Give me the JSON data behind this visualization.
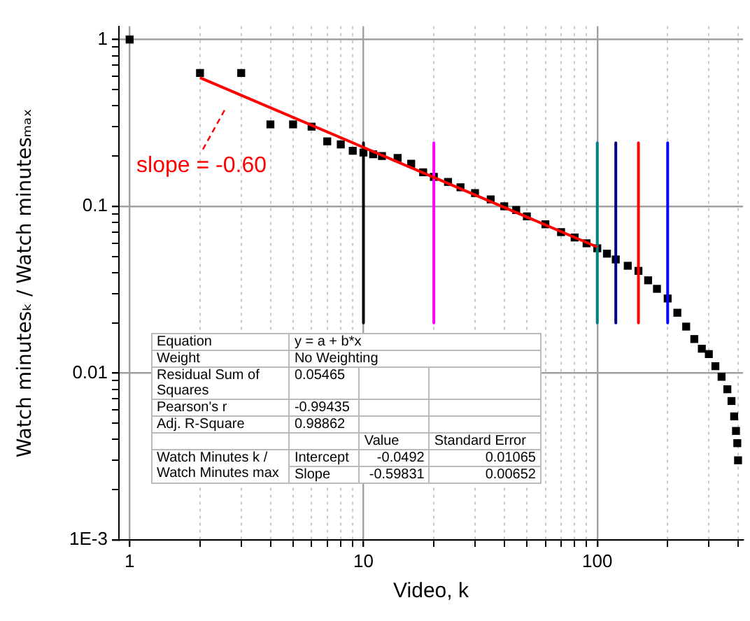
{
  "chart_data": {
    "type": "scatter",
    "xlabel": "Video, k",
    "ylabel": "Watch minutesₖ / Watch minutesₘₐₓ",
    "log": "xy",
    "grid": true,
    "legend": false,
    "marker": "square",
    "xlim": [
      0.9,
      420
    ],
    "ylim": [
      0.001,
      1.2
    ],
    "xticks": [
      1,
      {
        "value": 2,
        "label": null
      },
      {
        "value": 3,
        "label": null
      },
      {
        "value": 4,
        "label": null
      },
      {
        "value": 5,
        "label": null
      },
      {
        "value": 6,
        "label": null
      },
      {
        "value": 7,
        "label": null
      },
      {
        "value": 8,
        "label": null
      },
      {
        "value": 9,
        "label": null
      },
      10,
      {
        "value": 20,
        "label": null
      },
      {
        "value": 30,
        "label": null
      },
      {
        "value": 40,
        "label": null
      },
      {
        "value": 50,
        "label": null
      },
      {
        "value": 60,
        "label": null
      },
      {
        "value": 70,
        "label": null
      },
      {
        "value": 80,
        "label": null
      },
      {
        "value": 90,
        "label": null
      },
      100,
      {
        "value": 200,
        "label": null
      },
      {
        "value": 300,
        "label": null
      },
      {
        "value": 400,
        "label": null
      }
    ],
    "yticks": [
      {
        "value": 0.001,
        "label": "1E-3"
      },
      {
        "value": 0.002,
        "label": null
      },
      {
        "value": 0.003,
        "label": null
      },
      {
        "value": 0.004,
        "label": null
      },
      {
        "value": 0.005,
        "label": null
      },
      {
        "value": 0.006,
        "label": null
      },
      {
        "value": 0.007,
        "label": null
      },
      {
        "value": 0.008,
        "label": null
      },
      {
        "value": 0.009,
        "label": null
      },
      0.01,
      {
        "value": 0.02,
        "label": null
      },
      {
        "value": 0.03,
        "label": null
      },
      {
        "value": 0.04,
        "label": null
      },
      {
        "value": 0.05,
        "label": null
      },
      {
        "value": 0.06,
        "label": null
      },
      {
        "value": 0.07,
        "label": null
      },
      {
        "value": 0.08,
        "label": null
      },
      {
        "value": 0.09,
        "label": null
      },
      0.1,
      {
        "value": 0.2,
        "label": null
      },
      {
        "value": 0.3,
        "label": null
      },
      {
        "value": 0.4,
        "label": null
      },
      {
        "value": 0.5,
        "label": null
      },
      {
        "value": 0.6,
        "label": null
      },
      {
        "value": 0.7,
        "label": null
      },
      {
        "value": 0.8,
        "label": null
      },
      {
        "value": 0.9,
        "label": null
      },
      1
    ],
    "series": [
      {
        "color": "#000000",
        "x": [
          1,
          2,
          3,
          4,
          5,
          6,
          7,
          8,
          9,
          10,
          11,
          12,
          14,
          16,
          18,
          20,
          23,
          26,
          30,
          35,
          40,
          45,
          50,
          60,
          70,
          80,
          90,
          100,
          110,
          120,
          135,
          150,
          165,
          180,
          200,
          220,
          240,
          260,
          280,
          300,
          320,
          340,
          360,
          375,
          385,
          392,
          397,
          400
        ],
        "values": [
          1,
          0.63,
          0.63,
          0.31,
          0.31,
          0.3,
          0.245,
          0.235,
          0.215,
          0.21,
          0.205,
          0.2,
          0.195,
          0.18,
          0.16,
          0.15,
          0.14,
          0.13,
          0.12,
          0.11,
          0.1,
          0.095,
          0.087,
          0.078,
          0.07,
          0.065,
          0.06,
          0.056,
          0.052,
          0.048,
          0.044,
          0.041,
          0.036,
          0.032,
          0.028,
          0.023,
          0.019,
          0.016,
          0.014,
          0.013,
          0.011,
          0.0095,
          0.008,
          0.0068,
          0.0055,
          0.0045,
          0.0038,
          0.003
        ]
      },
      {
        "type": "line",
        "marker": "none",
        "color": "#ff0000",
        "x": [
          2,
          100
        ],
        "values": [
          0.59,
          0.057
        ]
      },
      {
        "type": "line",
        "marker": "none",
        "color": "#000000",
        "x": [
          10,
          10
        ],
        "values": [
          0.24,
          0.02
        ]
      },
      {
        "type": "line",
        "marker": "none",
        "color": "#ff00ff",
        "x": [
          20,
          20
        ],
        "values": [
          0.24,
          0.02
        ]
      },
      {
        "type": "line",
        "marker": "none",
        "color": "#008080",
        "x": [
          100,
          100
        ],
        "values": [
          0.24,
          0.02
        ]
      },
      {
        "type": "line",
        "marker": "none",
        "color": "#000080",
        "x": [
          120,
          120
        ],
        "values": [
          0.24,
          0.02
        ]
      },
      {
        "type": "line",
        "marker": "none",
        "color": "#ff0000",
        "x": [
          150,
          150
        ],
        "values": [
          0.24,
          0.02
        ]
      },
      {
        "type": "line",
        "marker": "none",
        "color": "#0000ff",
        "x": [
          200,
          200
        ],
        "values": [
          0.24,
          0.02
        ]
      }
    ],
    "annotations": [
      "slope = -0.60",
      "Equation",
      "y = a + b*x",
      "Weight",
      "No Weighting",
      "Residual Sum of Squares",
      "0.05465",
      "Pearson's r",
      "-0.99435",
      "Adj. R-Square",
      "0.98862",
      "Value",
      "Standard Error",
      "Watch Minutes k / Watch Minutes max",
      "Intercept",
      "-0.0492",
      "0.01065",
      "Slope",
      "-0.59831",
      "0.00652"
    ]
  }
}
